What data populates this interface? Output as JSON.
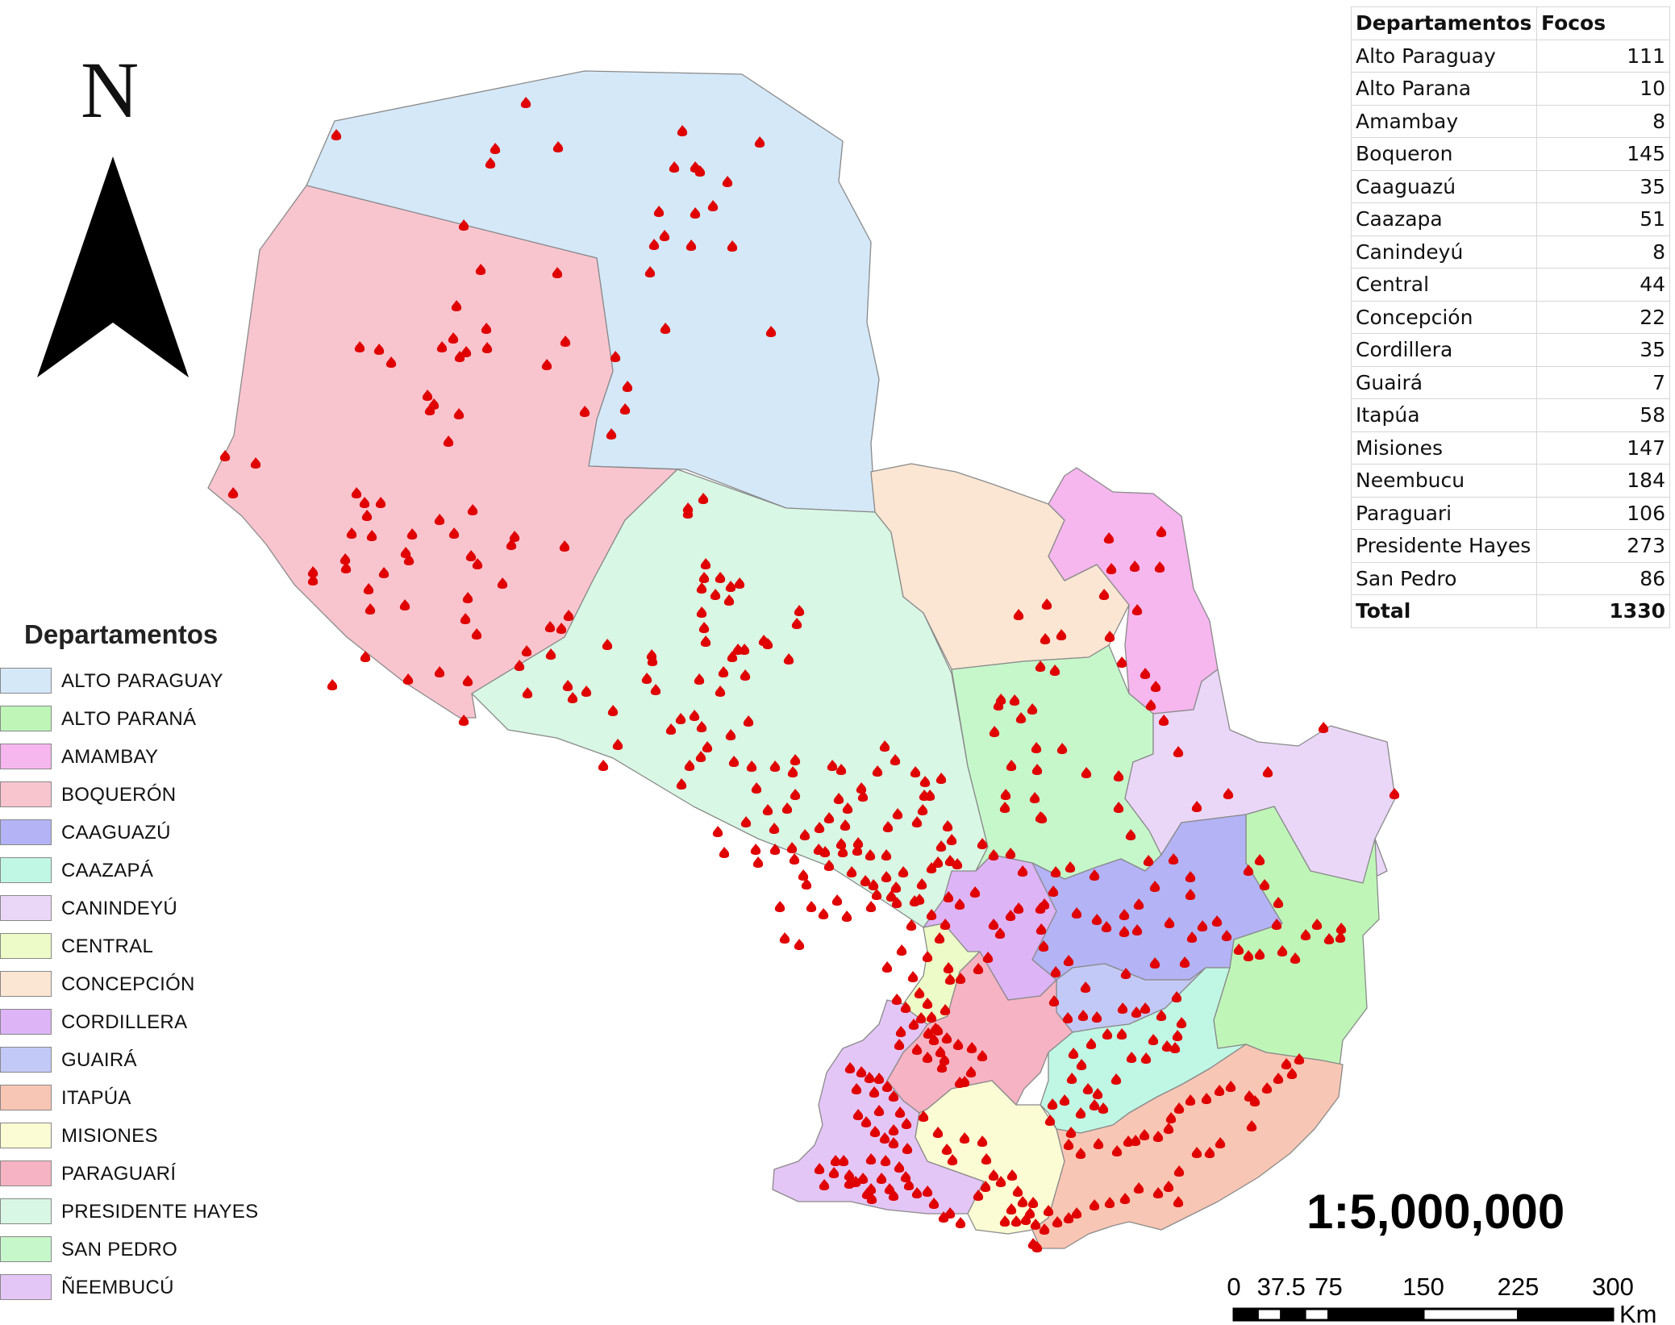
{
  "north_label": "N",
  "legend": {
    "title": "Departamentos",
    "items": [
      {
        "label": "ALTO PARAGUAY",
        "color": "#d4e8f8"
      },
      {
        "label": "ALTO PARANÁ",
        "color": "#bff6b8"
      },
      {
        "label": "AMAMBAY",
        "color": "#f6b6ee"
      },
      {
        "label": "BOQUERÓN",
        "color": "#f8c5cf"
      },
      {
        "label": "CAAGUAZÚ",
        "color": "#b3b3f6"
      },
      {
        "label": "CAAZAPÁ",
        "color": "#c0f7e4"
      },
      {
        "label": "CANINDEYÚ",
        "color": "#ead7f8"
      },
      {
        "label": "CENTRAL",
        "color": "#ecfbc7"
      },
      {
        "label": "CONCEPCIÓN",
        "color": "#fbe6d3"
      },
      {
        "label": "CORDILLERA",
        "color": "#ddb4f6"
      },
      {
        "label": "GUAIRÁ",
        "color": "#c3c9f6"
      },
      {
        "label": "ITAPÚA",
        "color": "#f8c6b4"
      },
      {
        "label": "MISIONES",
        "color": "#fbfbd4"
      },
      {
        "label": "PARAGUARÍ",
        "color": "#f6b3c3"
      },
      {
        "label": "PRESIDENTE HAYES",
        "color": "#d8f7e4"
      },
      {
        "label": "SAN PEDRO",
        "color": "#c6f7cb"
      },
      {
        "label": "ÑEEMBUCÚ",
        "color": "#e3c6f6"
      }
    ]
  },
  "table": {
    "headers": [
      "Departamentos",
      "Focos"
    ],
    "rows": [
      {
        "name": "Alto Paraguay",
        "value": "111"
      },
      {
        "name": "Alto Parana",
        "value": "10"
      },
      {
        "name": "Amambay",
        "value": "8"
      },
      {
        "name": "Boqueron",
        "value": "145"
      },
      {
        "name": "Caaguazú",
        "value": "35"
      },
      {
        "name": "Caazapa",
        "value": "51"
      },
      {
        "name": "Canindeyú",
        "value": "8"
      },
      {
        "name": "Central",
        "value": "44"
      },
      {
        "name": "Concepción",
        "value": "22"
      },
      {
        "name": "Cordillera",
        "value": "35"
      },
      {
        "name": "Guairá",
        "value": "7"
      },
      {
        "name": "Itapúa",
        "value": "58"
      },
      {
        "name": "Misiones",
        "value": "147"
      },
      {
        "name": "Neembucu",
        "value": "184"
      },
      {
        "name": "Paraguari",
        "value": "106"
      },
      {
        "name": "Presidente Hayes",
        "value": "273"
      },
      {
        "name": "San Pedro",
        "value": "86"
      }
    ],
    "total": {
      "name": "Total",
      "value": "1330"
    }
  },
  "scale": {
    "ratio": "1:5,000,000",
    "ticks": [
      "0",
      "37.5",
      "75",
      "150",
      "225",
      "300"
    ],
    "unit": "Km"
  },
  "fire_color": "#e00000"
}
